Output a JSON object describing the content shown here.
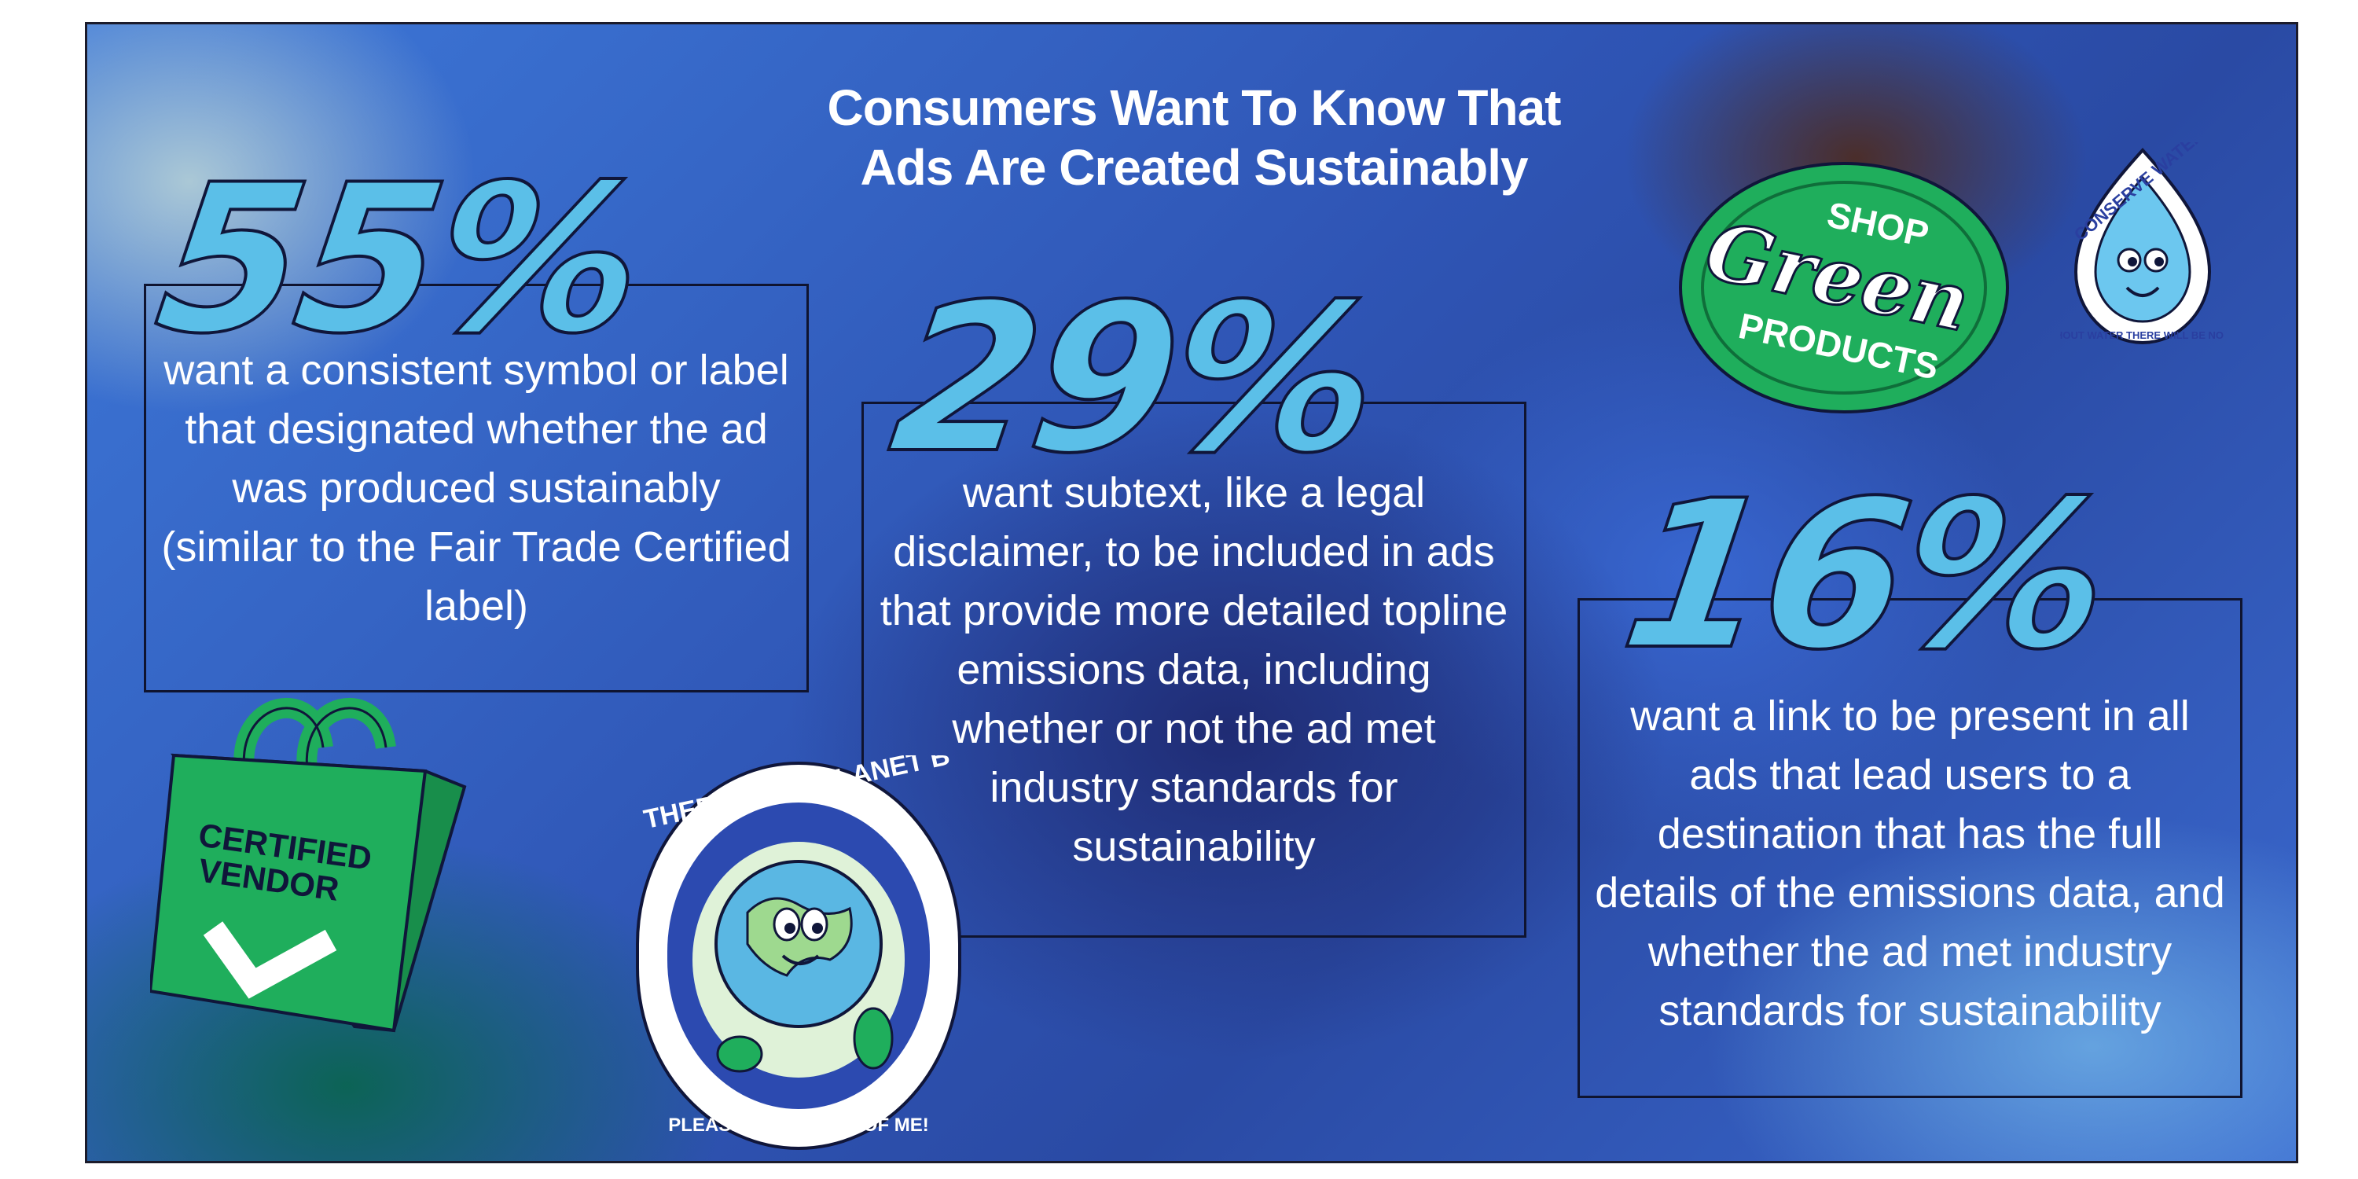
{
  "title": {
    "line1": "Consumers Want To Know That",
    "line2": "Ads Are Created Sustainably"
  },
  "stats": [
    {
      "value": "55%",
      "text": "want a consistent symbol or label that designated whether the ad was produced sustainably (similar to the Fair Trade Certified label)"
    },
    {
      "value": "29%",
      "text": "want subtext, like a legal disclaimer, to be included in ads that provide more detailed topline emissions data, including whether or not the ad met industry standards for sustainability"
    },
    {
      "value": "16%",
      "text": "want a link to be present in all ads that lead users to a destination that has the full details of the emissions data, and whether the ad met industry standards for sustainability"
    }
  ],
  "stickers": {
    "shop_green": {
      "top": "SHOP",
      "middle": "Green",
      "bottom": "PRODUCTS"
    },
    "water": {
      "top": "CONSERVE WATER",
      "bottom": "WITHOUT WATER THERE WILL BE NO LIFE"
    },
    "bag": {
      "line1": "CERTIFIED",
      "line2": "VENDOR"
    },
    "planet": {
      "top": "THERE IS NO PLANET B",
      "bottom": "PLEASE TAKE CARE OF ME!"
    }
  },
  "colors": {
    "accent_blue": "#5bbfe8",
    "sticker_green": "#1fae5c",
    "outline": "#10163a"
  }
}
